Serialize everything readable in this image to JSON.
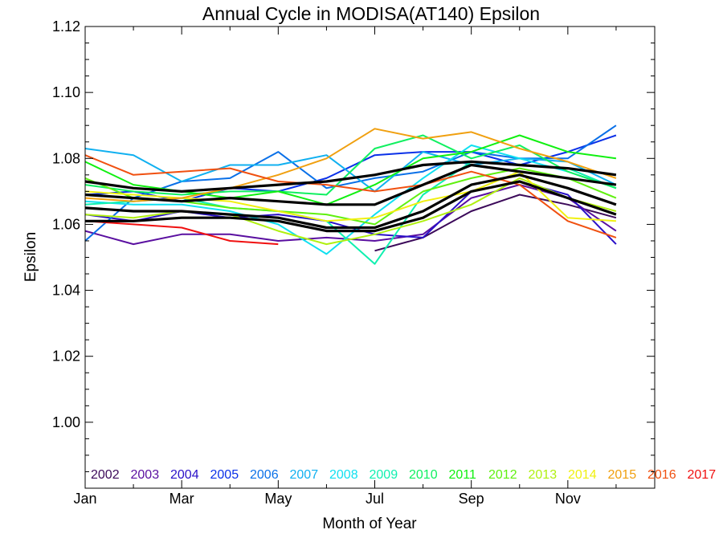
{
  "chart_data": {
    "type": "line",
    "title": "Annual Cycle in MODISA(AT140) Epsilon",
    "xlabel": "Month of Year",
    "ylabel": "Epsilon",
    "xlim": [
      1,
      12.8
    ],
    "ylim": [
      0.98,
      1.12
    ],
    "x_ticks": [
      {
        "value": 1,
        "label": "Jan"
      },
      {
        "value": 3,
        "label": "Mar"
      },
      {
        "value": 5,
        "label": "May"
      },
      {
        "value": 7,
        "label": "Jul"
      },
      {
        "value": 9,
        "label": "Sep"
      },
      {
        "value": 11,
        "label": "Nov"
      }
    ],
    "y_ticks": [
      {
        "value": 1.0,
        "label": "1.00"
      },
      {
        "value": 1.02,
        "label": "1.02"
      },
      {
        "value": 1.04,
        "label": "1.04"
      },
      {
        "value": 1.06,
        "label": "1.06"
      },
      {
        "value": 1.08,
        "label": "1.08"
      },
      {
        "value": 1.1,
        "label": "1.10"
      },
      {
        "value": 1.12,
        "label": "1.12"
      }
    ],
    "grid": false,
    "legend_position": "bottom",
    "x": [
      1,
      2,
      3,
      4,
      5,
      6,
      7,
      8,
      9,
      10,
      11,
      12
    ],
    "series": [
      {
        "name": "2002",
        "color": "#3c0a5a",
        "values": [
          null,
          null,
          null,
          null,
          null,
          null,
          1.052,
          1.056,
          1.064,
          1.069,
          1.066,
          1.062
        ]
      },
      {
        "name": "2003",
        "color": "#5a0fa0",
        "values": [
          1.058,
          1.054,
          1.057,
          1.057,
          1.055,
          1.056,
          1.055,
          1.057,
          1.068,
          1.072,
          1.068,
          1.058
        ]
      },
      {
        "name": "2004",
        "color": "#2a10c8",
        "values": [
          1.063,
          1.061,
          1.064,
          1.062,
          1.063,
          1.061,
          1.057,
          1.056,
          1.07,
          1.073,
          1.069,
          1.054
        ]
      },
      {
        "name": "2005",
        "color": "#0a30e8",
        "values": [
          1.069,
          1.07,
          1.067,
          1.071,
          1.07,
          1.074,
          1.081,
          1.082,
          1.082,
          1.078,
          1.082,
          1.087
        ]
      },
      {
        "name": "2006",
        "color": "#0a70e8",
        "values": [
          1.055,
          1.068,
          1.073,
          1.074,
          1.082,
          1.071,
          1.074,
          1.076,
          1.082,
          1.08,
          1.08,
          1.09
        ]
      },
      {
        "name": "2007",
        "color": "#10b0f0",
        "values": [
          1.083,
          1.081,
          1.073,
          1.078,
          1.078,
          1.081,
          1.07,
          1.082,
          1.078,
          1.08,
          1.079,
          1.072
        ]
      },
      {
        "name": "2008",
        "color": "#10e0f0",
        "values": [
          1.067,
          1.066,
          1.066,
          1.064,
          1.06,
          1.051,
          1.063,
          1.074,
          1.084,
          1.08,
          1.076,
          1.071
        ]
      },
      {
        "name": "2009",
        "color": "#10f0b0",
        "values": [
          1.066,
          1.067,
          1.068,
          1.065,
          1.064,
          1.061,
          1.048,
          1.069,
          1.079,
          1.078,
          1.077,
          1.071
        ]
      },
      {
        "name": "2010",
        "color": "#10f060",
        "values": [
          1.072,
          1.07,
          1.069,
          1.07,
          1.07,
          1.069,
          1.083,
          1.087,
          1.08,
          1.084,
          1.076,
          1.071
        ]
      },
      {
        "name": "2011",
        "color": "#10f010",
        "values": [
          1.079,
          1.072,
          1.07,
          1.068,
          1.07,
          1.066,
          1.072,
          1.08,
          1.082,
          1.087,
          1.082,
          1.08
        ]
      },
      {
        "name": "2012",
        "color": "#60f010",
        "values": [
          1.074,
          1.068,
          1.067,
          1.065,
          1.064,
          1.063,
          1.06,
          1.07,
          1.074,
          1.077,
          1.074,
          1.068
        ]
      },
      {
        "name": "2013",
        "color": "#b0f010",
        "values": [
          1.063,
          1.062,
          1.064,
          1.063,
          1.058,
          1.054,
          1.057,
          1.061,
          1.066,
          1.074,
          1.068,
          1.064
        ]
      },
      {
        "name": "2014",
        "color": "#f0f010",
        "values": [
          1.07,
          1.069,
          1.068,
          1.067,
          1.064,
          1.061,
          1.062,
          1.067,
          1.07,
          1.076,
          1.062,
          1.061
        ]
      },
      {
        "name": "2015",
        "color": "#f0a010",
        "values": [
          1.068,
          1.067,
          1.068,
          1.071,
          1.075,
          1.08,
          1.089,
          1.086,
          1.088,
          1.083,
          1.079,
          1.074
        ]
      },
      {
        "name": "2016",
        "color": "#f05010",
        "values": [
          1.081,
          1.075,
          1.076,
          1.077,
          1.073,
          1.072,
          1.07,
          1.072,
          1.076,
          1.072,
          1.061,
          1.056
        ]
      },
      {
        "name": "2017",
        "color": "#f01010",
        "values": [
          1.061,
          1.06,
          1.059,
          1.055,
          1.054,
          null,
          null,
          null,
          null,
          null,
          null,
          null
        ]
      }
    ],
    "mean_curves": [
      {
        "color": "#000000",
        "values": [
          1.073,
          1.071,
          1.07,
          1.071,
          1.072,
          1.073,
          1.075,
          1.078,
          1.079,
          1.078,
          1.077,
          1.075
        ]
      },
      {
        "color": "#000000",
        "values": [
          1.069,
          1.068,
          1.067,
          1.068,
          1.067,
          1.066,
          1.066,
          1.072,
          1.078,
          1.076,
          1.074,
          1.072
        ]
      },
      {
        "color": "#000000",
        "values": [
          1.065,
          1.064,
          1.064,
          1.063,
          1.062,
          1.059,
          1.059,
          1.064,
          1.072,
          1.075,
          1.071,
          1.066
        ]
      },
      {
        "color": "#000000",
        "values": [
          1.061,
          1.061,
          1.062,
          1.062,
          1.061,
          1.058,
          1.058,
          1.062,
          1.07,
          1.073,
          1.068,
          1.063
        ]
      }
    ]
  }
}
